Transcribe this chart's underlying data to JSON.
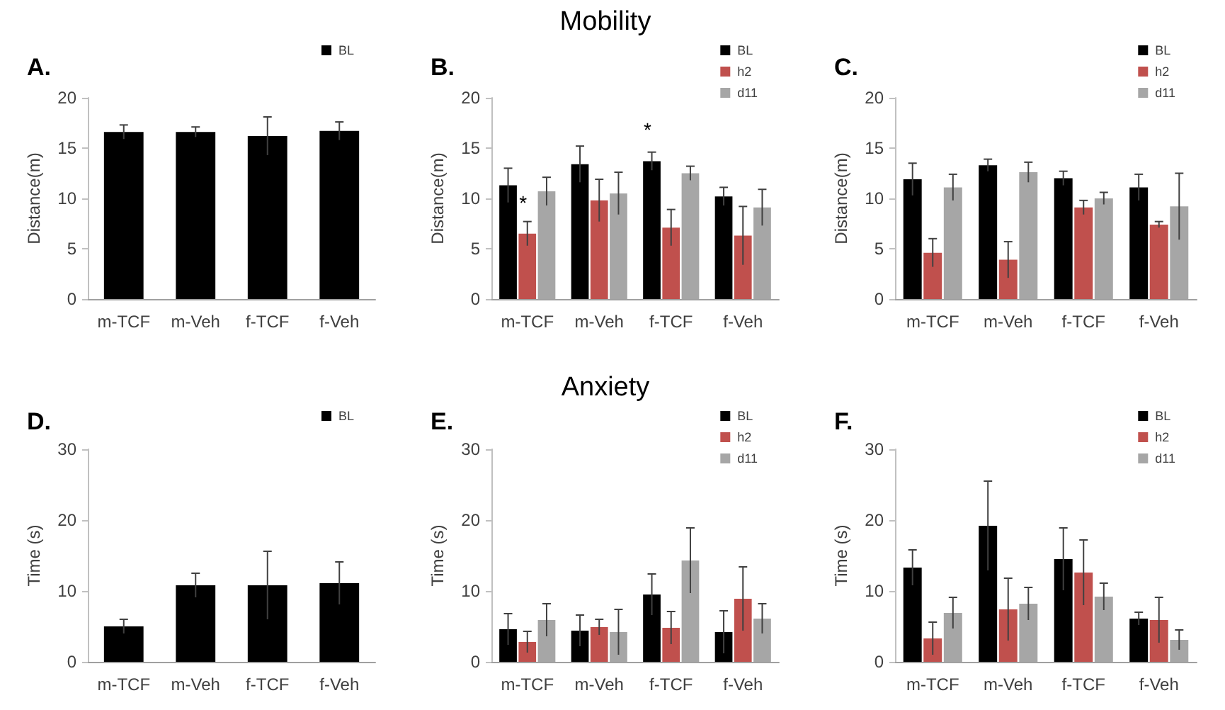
{
  "chart_data": [
    {
      "type": "bar",
      "title": "A.",
      "ylabel": "Distance(m)",
      "categories": [
        "m-TCF",
        "m-Veh",
        "f-TCF",
        "f-Veh"
      ],
      "ylim": [
        0,
        20
      ],
      "yticks": [
        0,
        5,
        10,
        15,
        20
      ],
      "grid": false,
      "legend": "top right",
      "series": [
        {
          "name": "BL",
          "color": "#000000",
          "values": [
            16.6,
            16.6,
            16.2,
            16.7
          ],
          "errors": [
            0.7,
            0.5,
            1.9,
            0.9
          ]
        }
      ]
    },
    {
      "type": "bar",
      "title": "B.",
      "ylabel": "Distance(m)",
      "categories": [
        "m-TCF",
        "m-Veh",
        "f-TCF",
        "f-Veh"
      ],
      "ylim": [
        0,
        20
      ],
      "yticks": [
        0,
        5,
        10,
        15,
        20
      ],
      "grid": false,
      "legend": "top right",
      "annotations": [
        "Mobility"
      ],
      "series": [
        {
          "name": "BL",
          "color": "#000000",
          "values": [
            11.3,
            13.4,
            13.7,
            10.2
          ],
          "errors": [
            1.7,
            1.8,
            0.9,
            0.9
          ],
          "value_labels": [
            null,
            null,
            "*",
            null
          ]
        },
        {
          "name": "h2",
          "color": "#c0504d",
          "values": [
            6.5,
            9.8,
            7.1,
            6.3
          ],
          "errors": [
            1.2,
            2.1,
            1.8,
            2.9
          ],
          "value_labels": [
            "*",
            null,
            null,
            null
          ]
        },
        {
          "name": "d11",
          "color": "#a6a6a6",
          "values": [
            10.7,
            10.5,
            12.5,
            9.1
          ],
          "errors": [
            1.4,
            2.1,
            0.7,
            1.8
          ]
        }
      ]
    },
    {
      "type": "bar",
      "title": "C.",
      "ylabel": "Distance(m)",
      "categories": [
        "m-TCF",
        "m-Veh",
        "f-TCF",
        "f-Veh"
      ],
      "ylim": [
        0,
        20
      ],
      "yticks": [
        0,
        5,
        10,
        15,
        20
      ],
      "grid": false,
      "legend": "top right",
      "series": [
        {
          "name": "BL",
          "color": "#000000",
          "values": [
            11.9,
            13.3,
            12.0,
            11.1
          ],
          "errors": [
            1.6,
            0.6,
            0.7,
            1.3
          ]
        },
        {
          "name": "h2",
          "color": "#c0504d",
          "values": [
            4.6,
            3.9,
            9.1,
            7.4
          ],
          "errors": [
            1.4,
            1.8,
            0.7,
            0.3
          ]
        },
        {
          "name": "d11",
          "color": "#a6a6a6",
          "values": [
            11.1,
            12.6,
            10.0,
            9.2
          ],
          "errors": [
            1.3,
            1.0,
            0.6,
            3.3
          ]
        }
      ]
    },
    {
      "type": "bar",
      "title": "D.",
      "ylabel": "Time (s)",
      "categories": [
        "m-TCF",
        "m-Veh",
        "f-TCF",
        "f-Veh"
      ],
      "ylim": [
        0,
        30
      ],
      "yticks": [
        0,
        10,
        20,
        30
      ],
      "grid": false,
      "legend": "top right",
      "series": [
        {
          "name": "BL",
          "color": "#000000",
          "values": [
            5.0,
            10.8,
            10.8,
            11.1
          ],
          "errors": [
            1.0,
            1.7,
            4.8,
            3.0
          ]
        }
      ]
    },
    {
      "type": "bar",
      "title": "E.",
      "ylabel": "Time (s)",
      "categories": [
        "m-TCF",
        "m-Veh",
        "f-TCF",
        "f-Veh"
      ],
      "ylim": [
        0,
        30
      ],
      "yticks": [
        0,
        10,
        20,
        30
      ],
      "grid": false,
      "legend": "top right",
      "annotations": [
        "Anxiety"
      ],
      "series": [
        {
          "name": "BL",
          "color": "#000000",
          "values": [
            4.6,
            4.4,
            9.5,
            4.2
          ],
          "errors": [
            2.2,
            2.2,
            2.9,
            3.0
          ]
        },
        {
          "name": "h2",
          "color": "#c0504d",
          "values": [
            2.8,
            4.9,
            4.8,
            8.9
          ],
          "errors": [
            1.5,
            1.1,
            2.3,
            4.5
          ]
        },
        {
          "name": "d11",
          "color": "#a6a6a6",
          "values": [
            5.9,
            4.2,
            14.3,
            6.1
          ],
          "errors": [
            2.3,
            3.2,
            4.6,
            2.1
          ]
        }
      ]
    },
    {
      "type": "bar",
      "title": "F.",
      "ylabel": "Time (s)",
      "categories": [
        "m-TCF",
        "m-Veh",
        "f-TCF",
        "f-Veh"
      ],
      "ylim": [
        0,
        30
      ],
      "yticks": [
        0,
        10,
        20,
        30
      ],
      "grid": false,
      "legend": "top right",
      "series": [
        {
          "name": "BL",
          "color": "#000000",
          "values": [
            13.3,
            19.2,
            14.5,
            6.1
          ],
          "errors": [
            2.5,
            6.3,
            4.4,
            0.9
          ]
        },
        {
          "name": "h2",
          "color": "#c0504d",
          "values": [
            3.3,
            7.4,
            12.6,
            5.9
          ],
          "errors": [
            2.3,
            4.4,
            4.6,
            3.2
          ]
        },
        {
          "name": "d11",
          "color": "#a6a6a6",
          "values": [
            6.9,
            8.2,
            9.2,
            3.1
          ],
          "errors": [
            2.2,
            2.3,
            1.9,
            1.4
          ]
        }
      ]
    }
  ]
}
